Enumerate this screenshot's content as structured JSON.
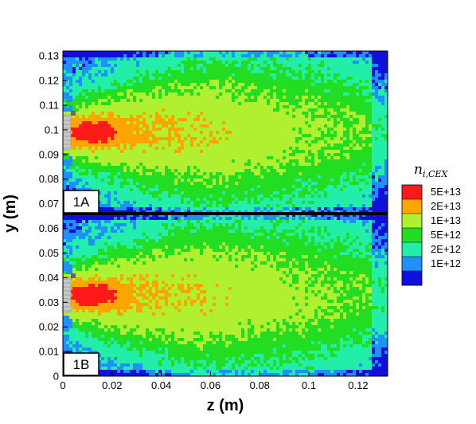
{
  "chart_data": {
    "type": "heatmap",
    "xlabel": "z (m)",
    "ylabel": "y (m)",
    "xlim": [
      0,
      0.132
    ],
    "x_ticks": [
      "0",
      "0.02",
      "0.04",
      "0.06",
      "0.08",
      "0.1",
      "0.12"
    ],
    "x_tick_values": [
      0,
      0.02,
      0.04,
      0.06,
      0.08,
      0.1,
      0.12
    ],
    "panels": [
      {
        "label": "1A",
        "ylim": [
          0.066,
          0.132
        ],
        "y_ticks": [
          "0.07",
          "0.08",
          "0.09",
          "0.1",
          "0.11",
          "0.12",
          "0.13"
        ],
        "y_tick_values": [
          0.07,
          0.08,
          0.09,
          0.1,
          0.11,
          0.12,
          0.13
        ],
        "source_center": [
          0.0,
          0.099
        ],
        "core_peak": 0.012
      },
      {
        "label": "1B",
        "ylim": [
          0,
          0.066
        ],
        "y_ticks": [
          "0",
          "0.01",
          "0.02",
          "0.03",
          "0.04",
          "0.05",
          "0.06"
        ],
        "y_tick_values": [
          0,
          0.01,
          0.02,
          0.03,
          0.04,
          0.05,
          0.06
        ],
        "source_center": [
          0.0,
          0.033
        ],
        "core_peak": 0.012
      }
    ],
    "legend": {
      "title": "n",
      "title_sub": "i,CEX",
      "placement": "right",
      "levels": [
        "5E+13",
        "2E+13",
        "1E+13",
        "5E+12",
        "2E+12",
        "1E+12"
      ],
      "level_values": [
        50000000000000.0,
        20000000000000.0,
        10000000000000.0,
        5000000000000.0,
        2000000000000.0,
        1000000000000.0
      ],
      "colors": [
        "#ff1a1a",
        "#ffa500",
        "#b0f030",
        "#22dd22",
        "#22eeaa",
        "#1e90ff",
        "#1010dd"
      ]
    },
    "grid": false
  }
}
